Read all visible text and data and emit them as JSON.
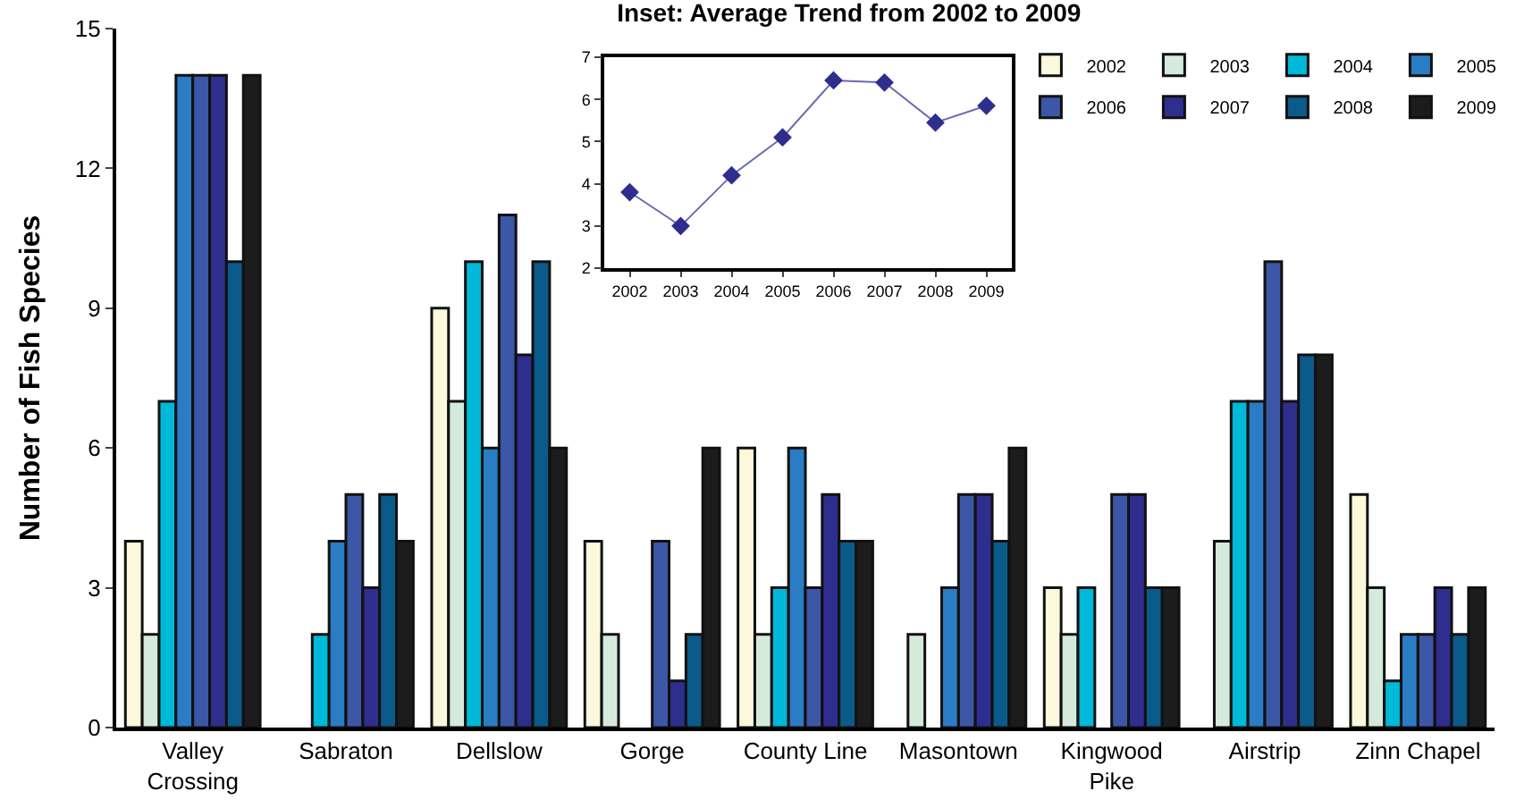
{
  "chart_data": [
    {
      "type": "bar",
      "title": "Inset: Average Trend from 2002 to 2009",
      "ylabel": "Number of Fish Species",
      "categories": [
        "Valley Crossing",
        "Sabraton",
        "Dellslow",
        "Gorge",
        "County Line",
        "Masontown",
        "Kingwood Pike",
        "Airstrip",
        "Zinn Chapel"
      ],
      "series": [
        {
          "name": "2002",
          "color": "#fcf8dc",
          "values": [
            4,
            0,
            9,
            4,
            6,
            0,
            3,
            0,
            5
          ]
        },
        {
          "name": "2003",
          "color": "#d4ebdc",
          "values": [
            2,
            0,
            7,
            2,
            2,
            2,
            2,
            4,
            3
          ]
        },
        {
          "name": "2004",
          "color": "#00b8d8",
          "values": [
            7,
            2,
            10,
            0,
            3,
            0,
            3,
            7,
            1
          ]
        },
        {
          "name": "2005",
          "color": "#2a7cc4",
          "values": [
            14,
            4,
            6,
            0,
            6,
            3,
            0,
            7,
            2
          ]
        },
        {
          "name": "2006",
          "color": "#3c56a8",
          "values": [
            14,
            5,
            11,
            4,
            3,
            5,
            5,
            10,
            2
          ]
        },
        {
          "name": "2007",
          "color": "#2e2e8e",
          "values": [
            14,
            3,
            8,
            1,
            5,
            5,
            5,
            7,
            3
          ]
        },
        {
          "name": "2008",
          "color": "#0a5a8a",
          "values": [
            10,
            5,
            10,
            2,
            4,
            4,
            3,
            8,
            2
          ]
        },
        {
          "name": "2009",
          "color": "#1c1c1c",
          "values": [
            14,
            4,
            6,
            6,
            4,
            6,
            3,
            8,
            3
          ]
        }
      ],
      "ylim": [
        0,
        15
      ],
      "yticks": [
        0,
        3,
        6,
        9,
        12,
        15
      ],
      "grid": false,
      "legend": "top right"
    },
    {
      "type": "line",
      "categories": [
        "2002",
        "2003",
        "2004",
        "2005",
        "2006",
        "2007",
        "2008",
        "2009"
      ],
      "series": [
        {
          "color": "#2e2e8e",
          "values": [
            3.8,
            3.0,
            4.2,
            5.1,
            6.45,
            6.4,
            5.45,
            5.85
          ]
        }
      ],
      "ylim": [
        2,
        7
      ],
      "yticks": [
        2,
        3,
        4,
        5,
        6,
        7
      ],
      "marker": "diamond",
      "grid": false
    }
  ]
}
